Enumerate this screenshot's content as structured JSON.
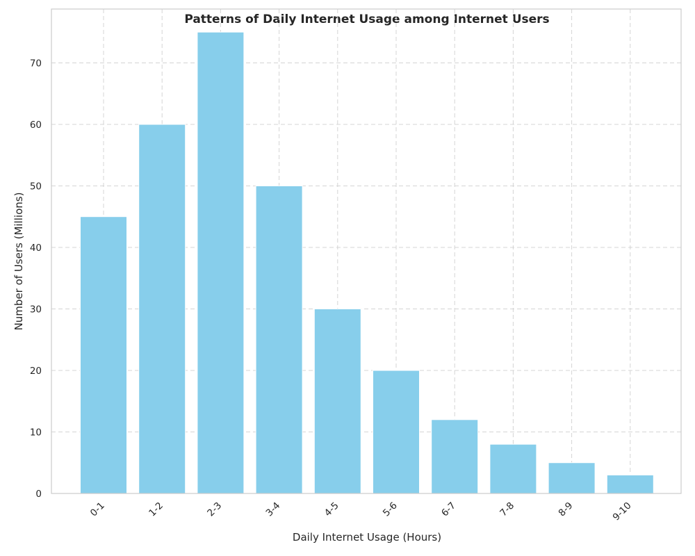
{
  "chart_data": {
    "type": "bar",
    "title": "Patterns of Daily Internet Usage among Internet Users",
    "xlabel": "Daily Internet Usage (Hours)",
    "ylabel": "Number of Users (Millions)",
    "categories": [
      "0-1",
      "1-2",
      "2-3",
      "3-4",
      "4-5",
      "5-6",
      "6-7",
      "7-8",
      "8-9",
      "9-10"
    ],
    "values": [
      45,
      60,
      75,
      50,
      30,
      20,
      12,
      8,
      5,
      3
    ],
    "ylim": [
      0,
      78.75
    ],
    "yticks": [
      0,
      10,
      20,
      30,
      40,
      50,
      60,
      70
    ],
    "grid": true,
    "bar_color": "#87CEEB"
  }
}
